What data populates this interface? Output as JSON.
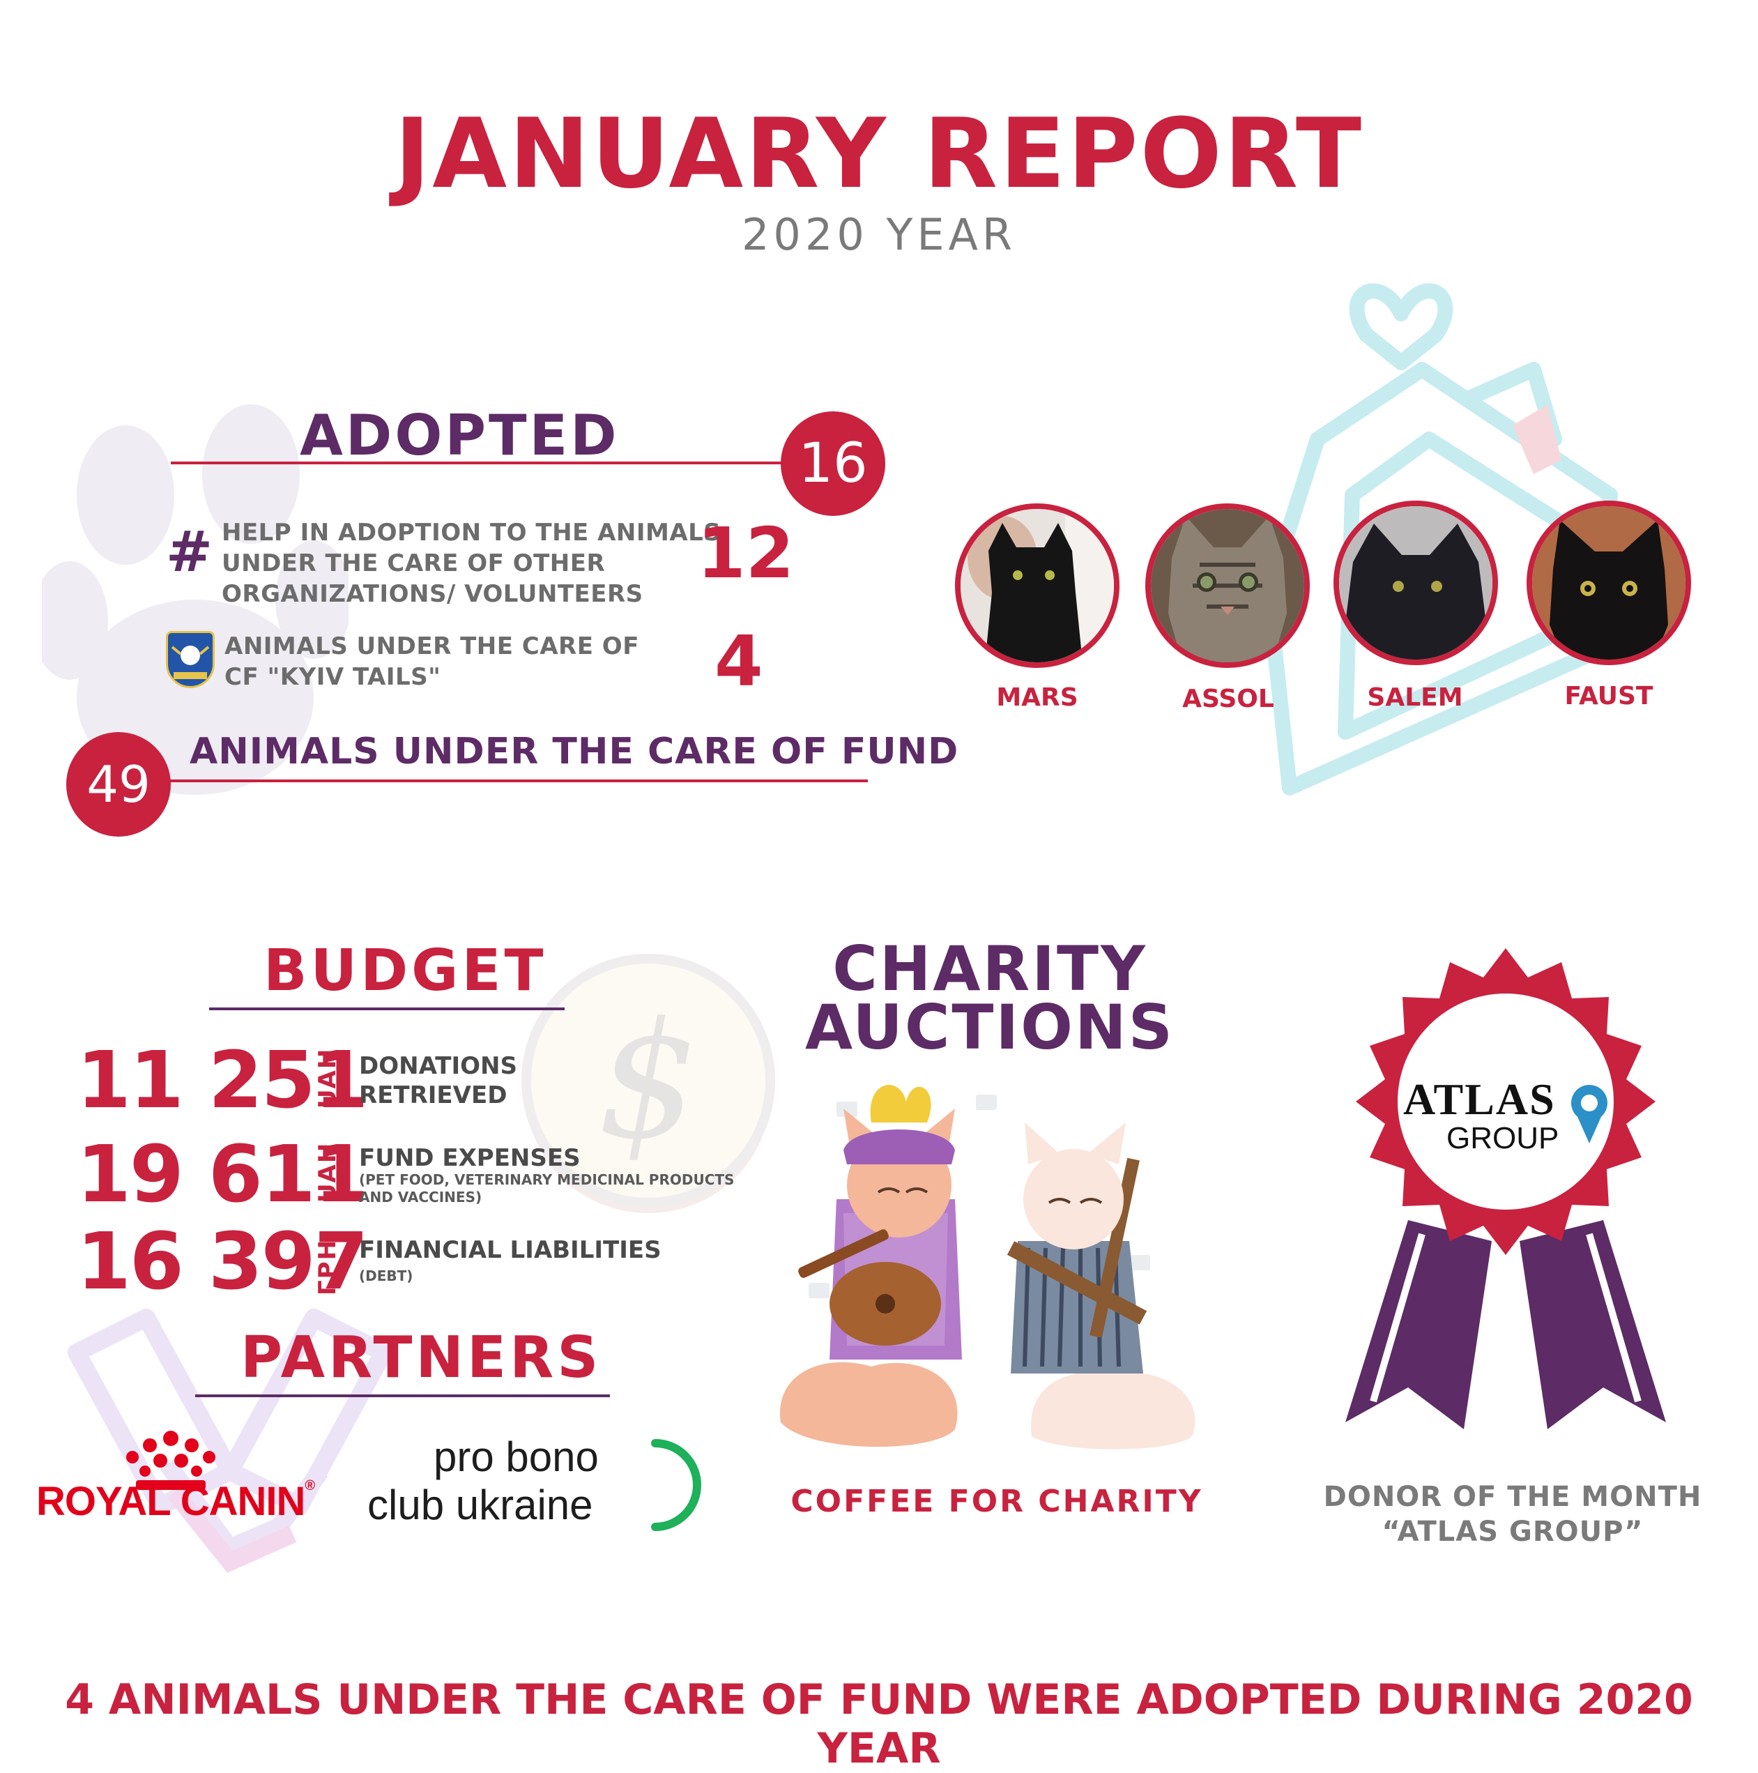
{
  "header": {
    "title": "JANUARY REPORT",
    "subtitle": "2020 YEAR"
  },
  "adopted": {
    "heading": "ADOPTED",
    "total": "16",
    "rows": [
      {
        "icon": "hash-icon",
        "lines": [
          "HELP IN ADOPTION TO THE ANIMALS",
          "UNDER THE CARE OF OTHER",
          "ORGANIZATIONS/ VOLUNTEERS"
        ],
        "value": "12"
      },
      {
        "icon": "kyiv-tails-logo-icon",
        "lines": [
          "ANIMALS UNDER THE CARE OF",
          "CF \"KYIV TAILS\""
        ],
        "value": "4"
      }
    ],
    "fund_count": "49",
    "fund_label": "ANIMALS UNDER THE CARE OF FUND"
  },
  "cats": [
    {
      "name": "MARS"
    },
    {
      "name": "ASSOL"
    },
    {
      "name": "SALEM"
    },
    {
      "name": "FAUST"
    }
  ],
  "budget": {
    "heading": "BUDGET",
    "items": [
      {
        "amount": "11 251",
        "unit": "UAH",
        "label_lines": [
          "DONATIONS",
          "RETRIEVED"
        ],
        "sub_lines": []
      },
      {
        "amount": "19 611",
        "unit": "UAH",
        "label_lines": [
          "FUND EXPENSES"
        ],
        "sub_lines": [
          "(PET FOOD, VETERINARY MEDICINAL PRODUCTS",
          "AND VACCINES)"
        ]
      },
      {
        "amount": "16 397",
        "unit": "ГРН.",
        "label_lines": [
          "FINANCIAL LIABILITIES"
        ],
        "sub_lines": [
          "(DEBT)"
        ]
      }
    ]
  },
  "partners": {
    "heading": "PARTNERS",
    "royal_canin": "ROYAL CANIN",
    "royal_mark": "®",
    "probono_line1": "pro bono",
    "probono_line2": "club ukraine"
  },
  "charity": {
    "heading_line1": "CHARITY",
    "heading_line2": "AUCTIONS",
    "caption": "COFFEE FOR CHARITY"
  },
  "donor": {
    "logo_line1": "ATLAS",
    "logo_line2": "GROUP",
    "caption_line1": "DONOR OF THE MONTH",
    "caption_line2": "“ATLAS GROUP”"
  },
  "footer": {
    "text": "4 ANIMALS UNDER THE CARE OF FUND WERE ADOPTED DURING 2020 YEAR"
  },
  "colors": {
    "crimson": "#c8223f",
    "purple": "#5d2b66",
    "grey": "#7a7a7a",
    "teal_outline": "#bfe9ee"
  }
}
